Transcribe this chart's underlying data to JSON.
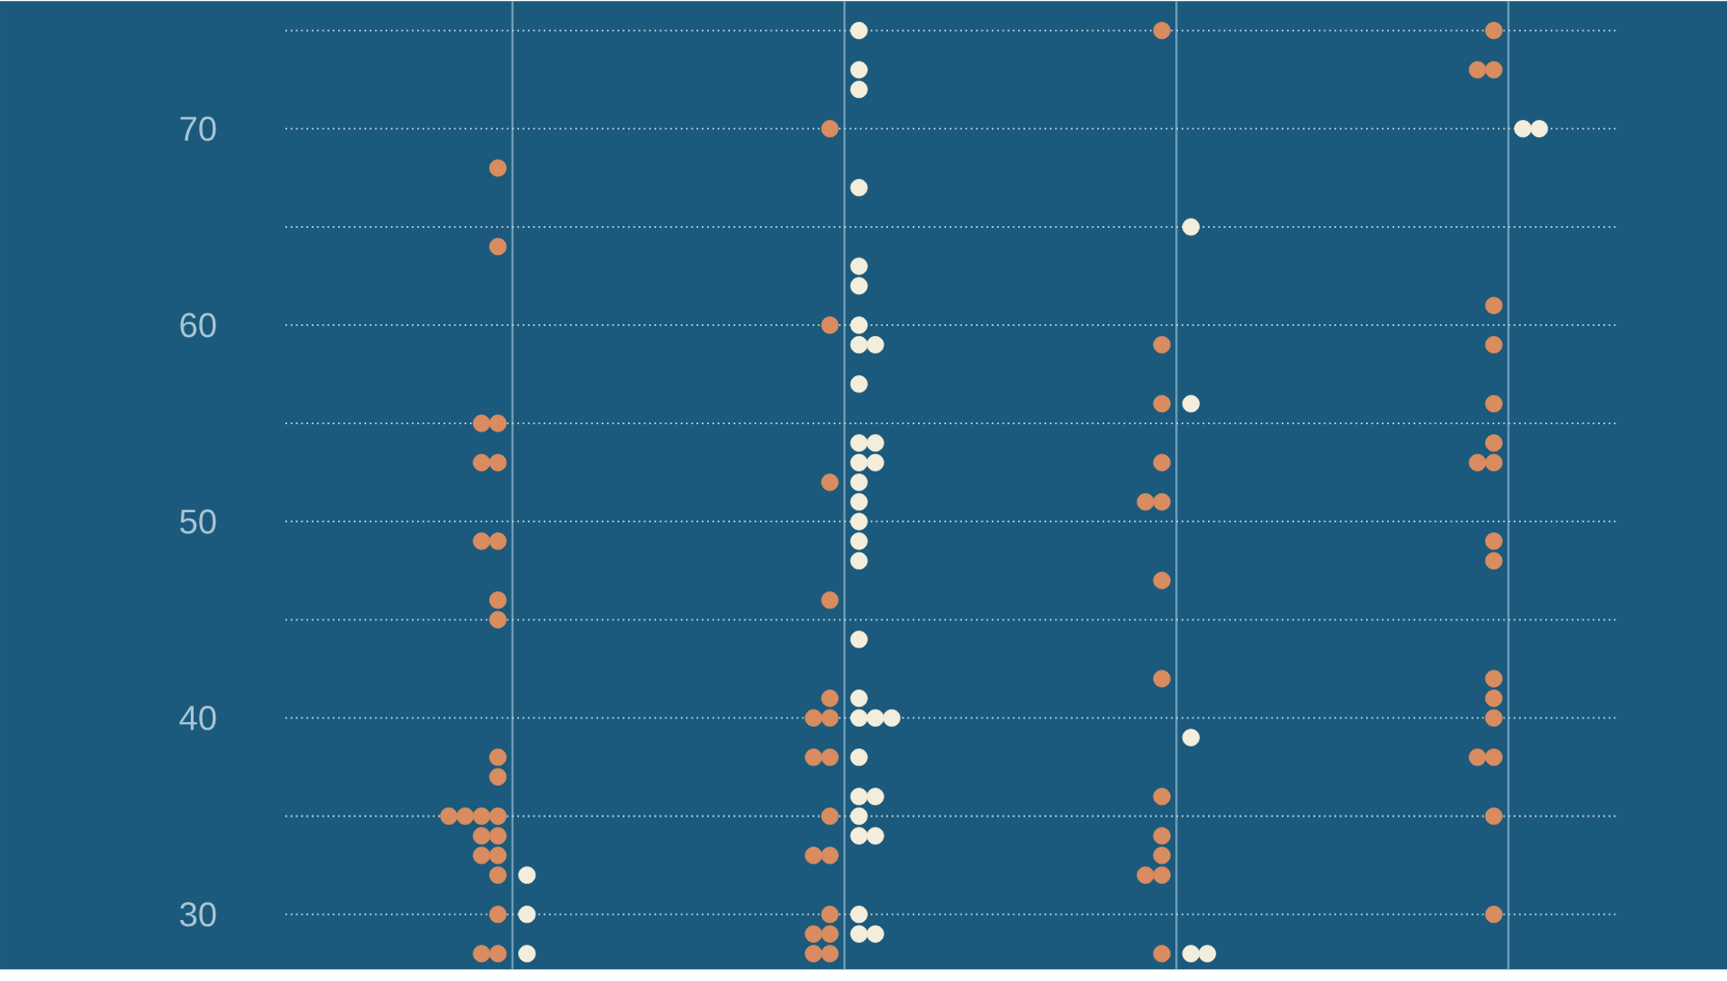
{
  "chart_data": {
    "type": "scatter",
    "categories": [
      null,
      null,
      null,
      null
    ],
    "ylim": [
      27.2,
      76.5
    ],
    "yticks": [
      {
        "value": 30,
        "label": "30"
      },
      {
        "value": 35,
        "label": null
      },
      {
        "value": 40,
        "label": "40"
      },
      {
        "value": 45,
        "label": null
      },
      {
        "value": 50,
        "label": "50"
      },
      {
        "value": 55,
        "label": null
      },
      {
        "value": 60,
        "label": "60"
      },
      {
        "value": 65,
        "label": null
      },
      {
        "value": 70,
        "label": "70"
      },
      {
        "value": 75,
        "label": null
      }
    ],
    "grid": true,
    "tick_labels": "y",
    "marker": "circle",
    "series": [
      {
        "color": "#d98c5f",
        "values": [
          68,
          70,
          75,
          75
        ]
      },
      {
        "color": "#d98c5f",
        "values": [
          64,
          60,
          59,
          73
        ]
      },
      {
        "color": "#d98c5f",
        "values": [
          55,
          52,
          56,
          73
        ]
      },
      {
        "color": "#d98c5f",
        "values": [
          55,
          46,
          53,
          61
        ]
      },
      {
        "color": "#d98c5f",
        "values": [
          53,
          41,
          51,
          59
        ]
      },
      {
        "color": "#d98c5f",
        "values": [
          53,
          40,
          51,
          56
        ]
      },
      {
        "color": "#d98c5f",
        "values": [
          49,
          40,
          47,
          54
        ]
      },
      {
        "color": "#d98c5f",
        "values": [
          49,
          38,
          42,
          53
        ]
      },
      {
        "color": "#d98c5f",
        "values": [
          46,
          38,
          36,
          53
        ]
      },
      {
        "color": "#d98c5f",
        "values": [
          45,
          35,
          34,
          49
        ]
      },
      {
        "color": "#d98c5f",
        "values": [
          38,
          33,
          33,
          48
        ]
      },
      {
        "color": "#d98c5f",
        "values": [
          37,
          33,
          32,
          42
        ]
      },
      {
        "color": "#d98c5f",
        "values": [
          35,
          30,
          32,
          41
        ]
      },
      {
        "color": "#d98c5f",
        "values": [
          35,
          29,
          28,
          40
        ]
      },
      {
        "color": "#d98c5f",
        "values": [
          35,
          29,
          null,
          38
        ]
      },
      {
        "color": "#d98c5f",
        "values": [
          35,
          28,
          null,
          38
        ]
      },
      {
        "color": "#d98c5f",
        "values": [
          34,
          28,
          null,
          35
        ]
      },
      {
        "color": "#d98c5f",
        "values": [
          34,
          null,
          null,
          30
        ]
      },
      {
        "color": "#d98c5f",
        "values": [
          33,
          null,
          null,
          null
        ]
      },
      {
        "color": "#d98c5f",
        "values": [
          33,
          null,
          null,
          null
        ]
      },
      {
        "color": "#d98c5f",
        "values": [
          32,
          null,
          null,
          null
        ]
      },
      {
        "color": "#d98c5f",
        "values": [
          30,
          null,
          null,
          null
        ]
      },
      {
        "color": "#d98c5f",
        "values": [
          28,
          null,
          null,
          null
        ]
      },
      {
        "color": "#d98c5f",
        "values": [
          28,
          null,
          null,
          null
        ]
      },
      {
        "color": "#f3eedc",
        "values": [
          32,
          75,
          65,
          70
        ]
      },
      {
        "color": "#f3eedc",
        "values": [
          30,
          73,
          56,
          70
        ]
      },
      {
        "color": "#f3eedc",
        "values": [
          28,
          72,
          39,
          null
        ]
      },
      {
        "color": "#f3eedc",
        "values": [
          null,
          67,
          28,
          null
        ]
      },
      {
        "color": "#f3eedc",
        "values": [
          null,
          63,
          28,
          null
        ]
      },
      {
        "color": "#f3eedc",
        "values": [
          null,
          62,
          null,
          null
        ]
      },
      {
        "color": "#f3eedc",
        "values": [
          null,
          60,
          null,
          null
        ]
      },
      {
        "color": "#f3eedc",
        "values": [
          null,
          59,
          null,
          null
        ]
      },
      {
        "color": "#f3eedc",
        "values": [
          null,
          59,
          null,
          null
        ]
      },
      {
        "color": "#f3eedc",
        "values": [
          null,
          57,
          null,
          null
        ]
      },
      {
        "color": "#f3eedc",
        "values": [
          null,
          54,
          null,
          null
        ]
      },
      {
        "color": "#f3eedc",
        "values": [
          null,
          54,
          null,
          null
        ]
      },
      {
        "color": "#f3eedc",
        "values": [
          null,
          53,
          null,
          null
        ]
      },
      {
        "color": "#f3eedc",
        "values": [
          null,
          53,
          null,
          null
        ]
      },
      {
        "color": "#f3eedc",
        "values": [
          null,
          52,
          null,
          null
        ]
      },
      {
        "color": "#f3eedc",
        "values": [
          null,
          51,
          null,
          null
        ]
      },
      {
        "color": "#f3eedc",
        "values": [
          null,
          50,
          null,
          null
        ]
      },
      {
        "color": "#f3eedc",
        "values": [
          null,
          49,
          null,
          null
        ]
      },
      {
        "color": "#f3eedc",
        "values": [
          null,
          48,
          null,
          null
        ]
      },
      {
        "color": "#f3eedc",
        "values": [
          null,
          44,
          null,
          null
        ]
      },
      {
        "color": "#f3eedc",
        "values": [
          null,
          41,
          null,
          null
        ]
      },
      {
        "color": "#f3eedc",
        "values": [
          null,
          40,
          null,
          null
        ]
      },
      {
        "color": "#f3eedc",
        "values": [
          null,
          40,
          null,
          null
        ]
      },
      {
        "color": "#f3eedc",
        "values": [
          null,
          40,
          null,
          null
        ]
      },
      {
        "color": "#f3eedc",
        "values": [
          null,
          38,
          null,
          null
        ]
      },
      {
        "color": "#f3eedc",
        "values": [
          null,
          36,
          null,
          null
        ]
      },
      {
        "color": "#f3eedc",
        "values": [
          null,
          36,
          null,
          null
        ]
      },
      {
        "color": "#f3eedc",
        "values": [
          null,
          35,
          null,
          null
        ]
      },
      {
        "color": "#f3eedc",
        "values": [
          null,
          34,
          null,
          null
        ]
      },
      {
        "color": "#f3eedc",
        "values": [
          null,
          34,
          null,
          null
        ]
      },
      {
        "color": "#f3eedc",
        "values": [
          null,
          30,
          null,
          null
        ]
      },
      {
        "color": "#f3eedc",
        "values": [
          null,
          29,
          null,
          null
        ]
      },
      {
        "color": "#f3eedc",
        "values": [
          null,
          29,
          null,
          null
        ]
      }
    ]
  }
}
